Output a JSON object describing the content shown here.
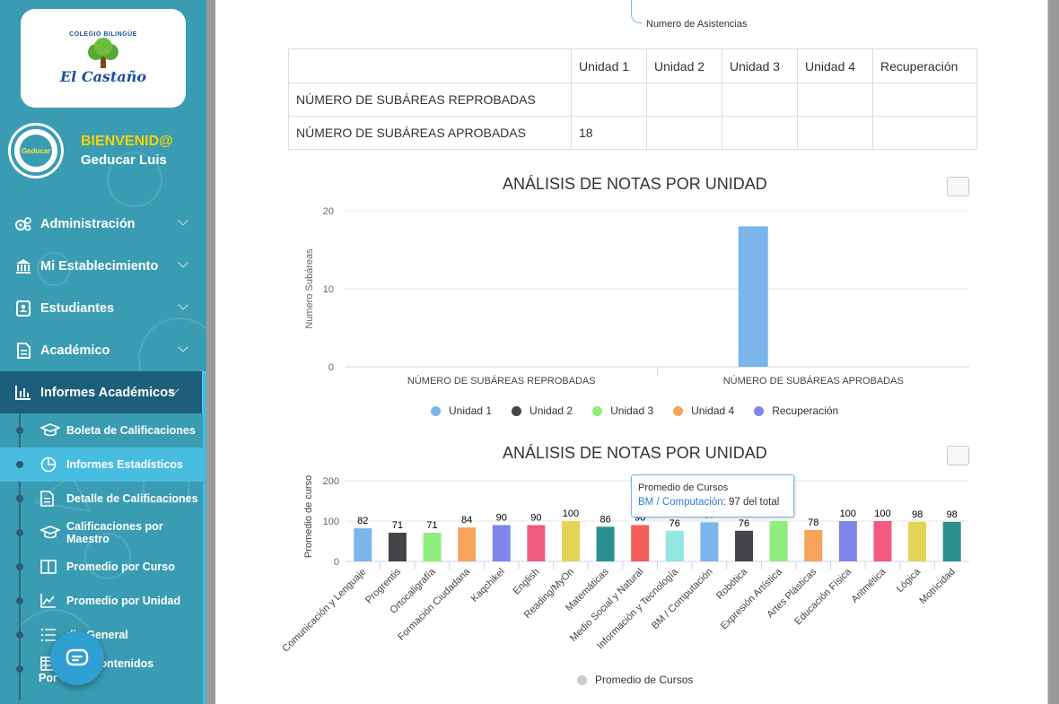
{
  "sidebar": {
    "logo": {
      "arc_text": "COLEGIO BILINGÜE",
      "name": "El Castaño"
    },
    "avatar_text": "Geducar",
    "welcome": "BIENVENID@",
    "username": "Geducar Luis",
    "menu": [
      {
        "label": "Administración",
        "icon": "gears-icon"
      },
      {
        "label": "Mi Establecimiento",
        "icon": "bank-icon"
      },
      {
        "label": "Estudiantes",
        "icon": "contact-card-icon"
      },
      {
        "label": "Académico",
        "icon": "document-icon"
      },
      {
        "label": "Informes Académicos",
        "icon": "bar-chart-icon",
        "active": true
      }
    ],
    "submenu": [
      {
        "label": "Boleta de Calificaciones",
        "icon": "graduation-cap-icon"
      },
      {
        "label": "Informes Estadísticos",
        "icon": "pie-chart-icon",
        "active": true
      },
      {
        "label": "Detalle de Calificaciones",
        "icon": "list-doc-icon"
      },
      {
        "label": "Calificaciones por Maestro",
        "icon": "graduation-cap-icon"
      },
      {
        "label": "Promedio por Curso",
        "icon": "columns-icon"
      },
      {
        "label": "Promedio por Unidad",
        "icon": "area-chart-icon"
      },
      {
        "label": "dio General",
        "icon": "list-icon"
      },
      {
        "label": "e de Contenidos",
        "label2": "Por Curso",
        "icon": "table-list-icon"
      }
    ]
  },
  "main": {
    "asistencias_label": "Numero de Asistencias",
    "table": {
      "headers": [
        "",
        "Unidad 1",
        "Unidad 2",
        "Unidad 3",
        "Unidad 4",
        "Recuperación"
      ],
      "rows": [
        [
          "NÚMERO DE SUBÁREAS REPROBADAS",
          "",
          "",
          "",
          "",
          ""
        ],
        [
          "NÚMERO DE SUBÁREAS APROBADAS",
          "18",
          "",
          "",
          "",
          ""
        ]
      ]
    },
    "chart1_title": "ANÁLISIS DE NOTAS POR UNIDAD",
    "chart2_title": "ANÁLISIS DE NOTAS POR UNIDAD",
    "tooltip": {
      "title": "Promedio de Cursos",
      "category": "BM / Computación",
      "value_text": ": 97 del total"
    }
  },
  "chart_data": [
    {
      "type": "bar",
      "title": "ANÁLISIS DE NOTAS POR UNIDAD",
      "categories": [
        "NÚMERO DE SUBÁREAS REPROBADAS",
        "NÚMERO DE SUBÁREAS APROBADAS"
      ],
      "ylabel": "Numero Subáreas",
      "ylim": [
        0,
        20
      ],
      "yticks": [
        0,
        10,
        20
      ],
      "legend_position": "bottom",
      "series": [
        {
          "name": "Unidad 1",
          "color": "#7cb5ec",
          "values": [
            0,
            18
          ]
        },
        {
          "name": "Unidad 2",
          "color": "#434348",
          "values": [
            0,
            0
          ]
        },
        {
          "name": "Unidad 3",
          "color": "#90ed7d",
          "values": [
            0,
            0
          ]
        },
        {
          "name": "Unidad 4",
          "color": "#f7a35c",
          "values": [
            0,
            0
          ]
        },
        {
          "name": "Recuperación",
          "color": "#8085e9",
          "values": [
            0,
            0
          ]
        }
      ]
    },
    {
      "type": "bar",
      "title": "ANÁLISIS DE NOTAS POR UNIDAD",
      "categories": [
        "Comunicación y Lenguaje",
        "Progrentis",
        "Ortocaligrafía",
        "Formación Ciudadana",
        "Kaqchikel",
        "English",
        "Reading/MyOn",
        "Matemáticas",
        "Medio Social y Natural",
        "Información y Tecnología",
        "BM / Computación",
        "Robótica",
        "Expresión Artística",
        "Artes Plásticas",
        "Educación Física",
        "Aritmética",
        "Lógica",
        "Motricidad"
      ],
      "values": [
        82,
        71,
        71,
        84,
        90,
        90,
        100,
        86,
        90,
        76,
        97,
        76,
        100,
        78,
        100,
        100,
        98,
        98
      ],
      "colors": [
        "#7cb5ec",
        "#434348",
        "#90ed7d",
        "#f7a35c",
        "#8085e9",
        "#f15c80",
        "#e4d354",
        "#2b908f",
        "#f45b5b",
        "#91e8e1",
        "#7cb5ec",
        "#434348",
        "#90ed7d",
        "#f7a35c",
        "#8085e9",
        "#f15c80",
        "#e4d354",
        "#2b908f"
      ],
      "ylabel": "Promedio de curso",
      "ylim": [
        0,
        200
      ],
      "yticks": [
        0,
        100,
        200
      ],
      "legend_position": "bottom",
      "series_name": "Promedio de Cursos",
      "highlighted": "BM / Computación"
    }
  ]
}
